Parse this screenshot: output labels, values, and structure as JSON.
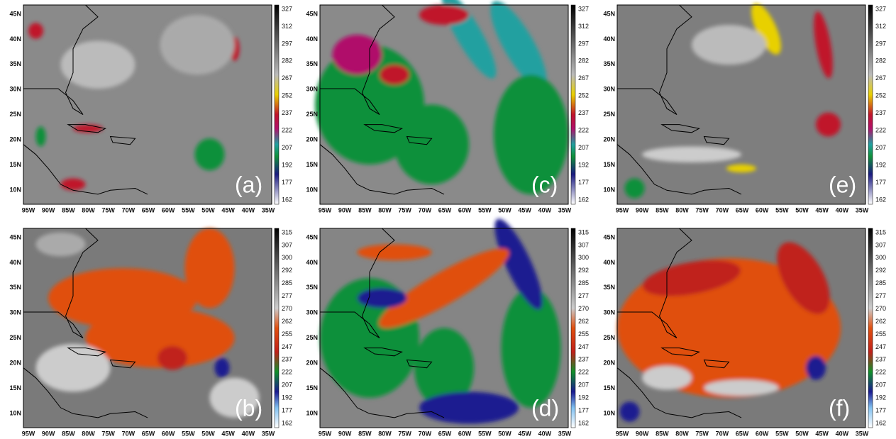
{
  "lat_ticks": [
    "45N",
    "40N",
    "35N",
    "30N",
    "25N",
    "20N",
    "15N",
    "10N"
  ],
  "lon_ticks": [
    "95W",
    "90W",
    "85W",
    "80W",
    "75W",
    "70W",
    "65W",
    "60W",
    "55W",
    "50W",
    "45W",
    "40W",
    "35W"
  ],
  "colorbars": [
    {
      "ticks": [
        "327",
        "312",
        "297",
        "282",
        "267",
        "252",
        "237",
        "222",
        "207",
        "192",
        "177",
        "162"
      ]
    },
    {
      "ticks": [
        "315",
        "307",
        "300",
        "292",
        "285",
        "277",
        "270",
        "262",
        "255",
        "247",
        "237",
        "222",
        "207",
        "192",
        "177",
        "162"
      ]
    }
  ],
  "panels": [
    {
      "label": "(a)"
    },
    {
      "label": "(c)"
    },
    {
      "label": "(e)"
    },
    {
      "label": "(b)"
    },
    {
      "label": "(d)"
    },
    {
      "label": "(f)"
    }
  ]
}
